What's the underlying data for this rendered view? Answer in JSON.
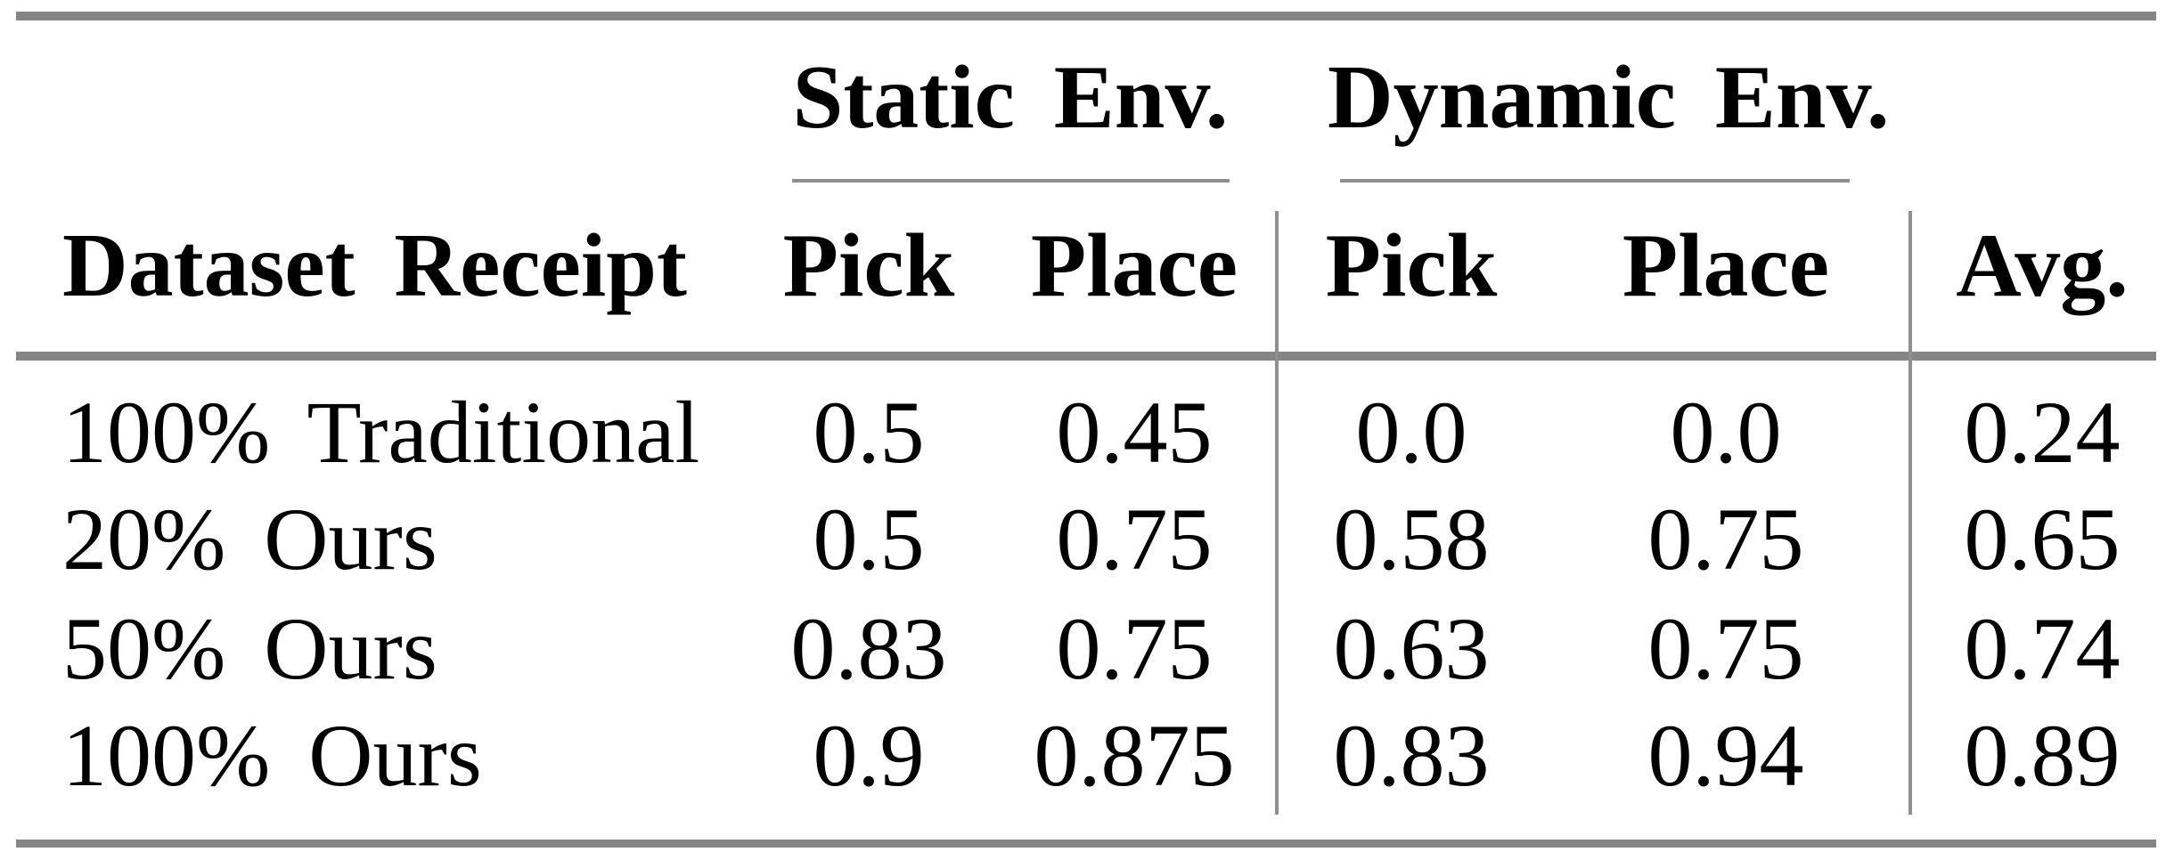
{
  "colors": {
    "thick_rule": "#858585",
    "thin_rule": "#8f8f8f",
    "text": "#000000",
    "background": "#ffffff"
  },
  "table": {
    "title_groups": [
      {
        "label": "Static Env."
      },
      {
        "label": "Dynamic Env."
      }
    ],
    "header": {
      "row_label": "Dataset Receipt",
      "static_pick": "Pick",
      "static_place": "Place",
      "dynamic_pick": "Pick",
      "dynamic_place": "Place",
      "avg": "Avg."
    },
    "rows": [
      {
        "cells": [
          "100% Traditional",
          "0.5",
          "0.45",
          "0.0",
          "0.0",
          "0.24"
        ]
      },
      {
        "cells": [
          "20% Ours",
          "0.5",
          "0.75",
          "0.58",
          "0.75",
          "0.65"
        ]
      },
      {
        "cells": [
          "50% Ours",
          "0.83",
          "0.75",
          "0.63",
          "0.75",
          "0.74"
        ]
      },
      {
        "cells": [
          "100% Ours",
          "0.9",
          "0.875",
          "0.83",
          "0.94",
          "0.89"
        ]
      }
    ]
  },
  "chart_data": {
    "type": "table",
    "columns": [
      "Dataset Receipt",
      "Static Env. Pick",
      "Static Env. Place",
      "Dynamic Env. Pick",
      "Dynamic Env. Place",
      "Avg."
    ],
    "rows": [
      [
        "100% Traditional",
        0.5,
        0.45,
        0.0,
        0.0,
        0.24
      ],
      [
        "20% Ours",
        0.5,
        0.75,
        0.58,
        0.75,
        0.65
      ],
      [
        "50% Ours",
        0.83,
        0.75,
        0.63,
        0.75,
        0.74
      ],
      [
        "100% Ours",
        0.9,
        0.875,
        0.83,
        0.94,
        0.89
      ]
    ]
  }
}
